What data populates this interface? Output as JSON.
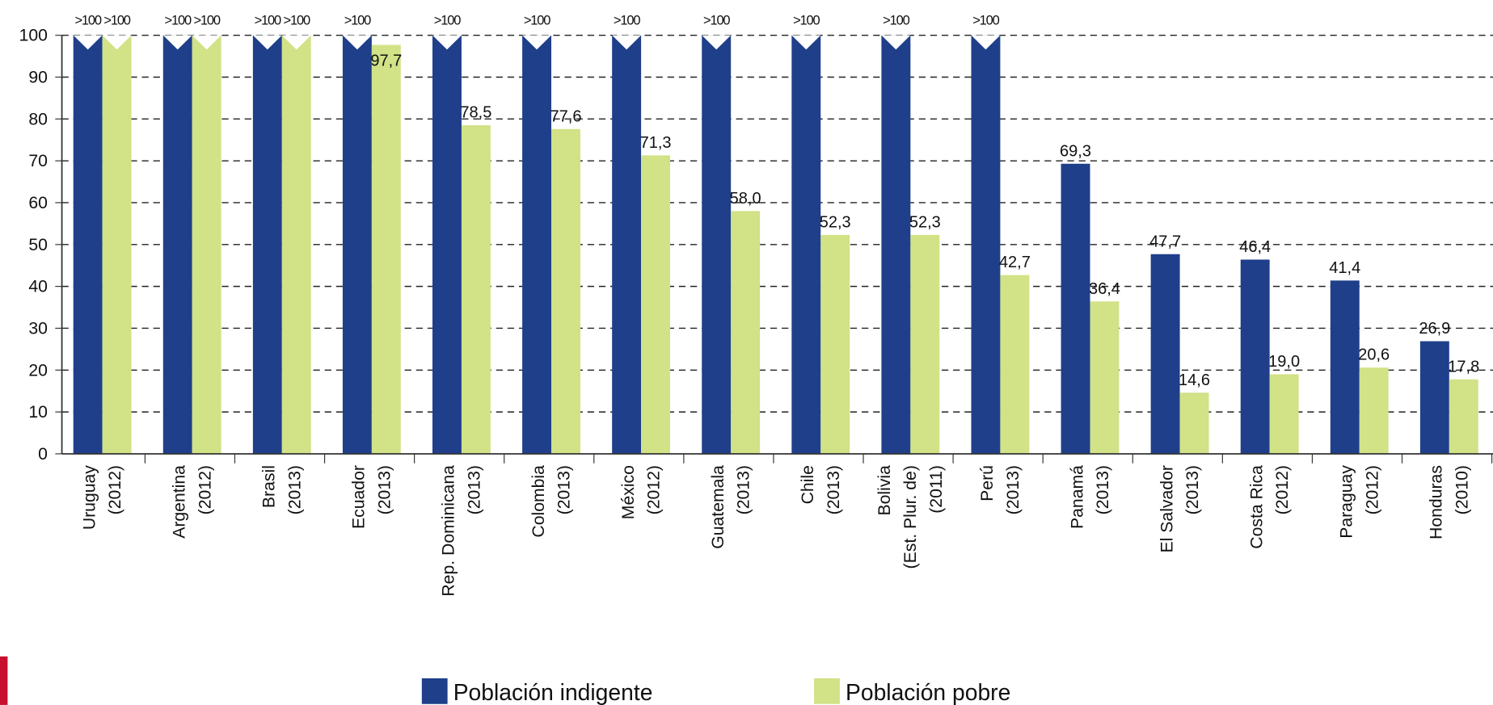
{
  "chart_data": {
    "type": "bar",
    "categories": [
      [
        "Uruguay",
        "(2012)"
      ],
      [
        "Argentina",
        "(2012)"
      ],
      [
        "Brasil",
        "(2013)"
      ],
      [
        "Ecuador",
        "(2013)"
      ],
      [
        "Rep. Dominicana",
        "(2013)"
      ],
      [
        "Colombia",
        "(2013)"
      ],
      [
        "México",
        "(2012)"
      ],
      [
        "Guatemala",
        "(2013)"
      ],
      [
        "Chile",
        "(2013)"
      ],
      [
        "Bolivia",
        "(Est. Plur. de)",
        "(2011)"
      ],
      [
        "Perú",
        "(2013)"
      ],
      [
        "Panamá",
        "(2013)"
      ],
      [
        "El Salvador",
        "(2013)"
      ],
      [
        "Costa Rica",
        "(2012)"
      ],
      [
        "Paraguay",
        "(2012)"
      ],
      [
        "Honduras",
        "(2010)"
      ]
    ],
    "series": [
      {
        "name": "Población indigente",
        "color": "#1f3f8a",
        "values": [
          100,
          100,
          100,
          100,
          100,
          100,
          100,
          100,
          100,
          100,
          100,
          69.3,
          47.7,
          46.4,
          41.4,
          26.9
        ],
        "value_labels": [
          ">100",
          ">100",
          ">100",
          ">100",
          ">100",
          ">100",
          ">100",
          ">100",
          ">100",
          ">100",
          ">100",
          "69,3",
          "47,7",
          "46,4",
          "41,4",
          "26,9"
        ]
      },
      {
        "name": "Población pobre",
        "color": "#d1e287",
        "values": [
          100,
          100,
          100,
          97.7,
          78.5,
          77.6,
          71.3,
          58.0,
          52.3,
          52.3,
          42.7,
          36.4,
          14.6,
          19.0,
          20.6,
          17.8
        ],
        "value_labels": [
          ">100",
          ">100",
          ">100",
          "97,7",
          "78,5",
          "77,6",
          "71,3",
          "58,0",
          "52,3",
          "52,3",
          "42,7",
          "36,4",
          "14,6",
          "19,0",
          "20,6",
          "17,8"
        ]
      }
    ],
    "ylim": [
      0,
      100
    ],
    "yticks": [
      0,
      10,
      20,
      30,
      40,
      50,
      60,
      70,
      80,
      90,
      100
    ],
    "grid": true,
    "legend": "bottom"
  }
}
